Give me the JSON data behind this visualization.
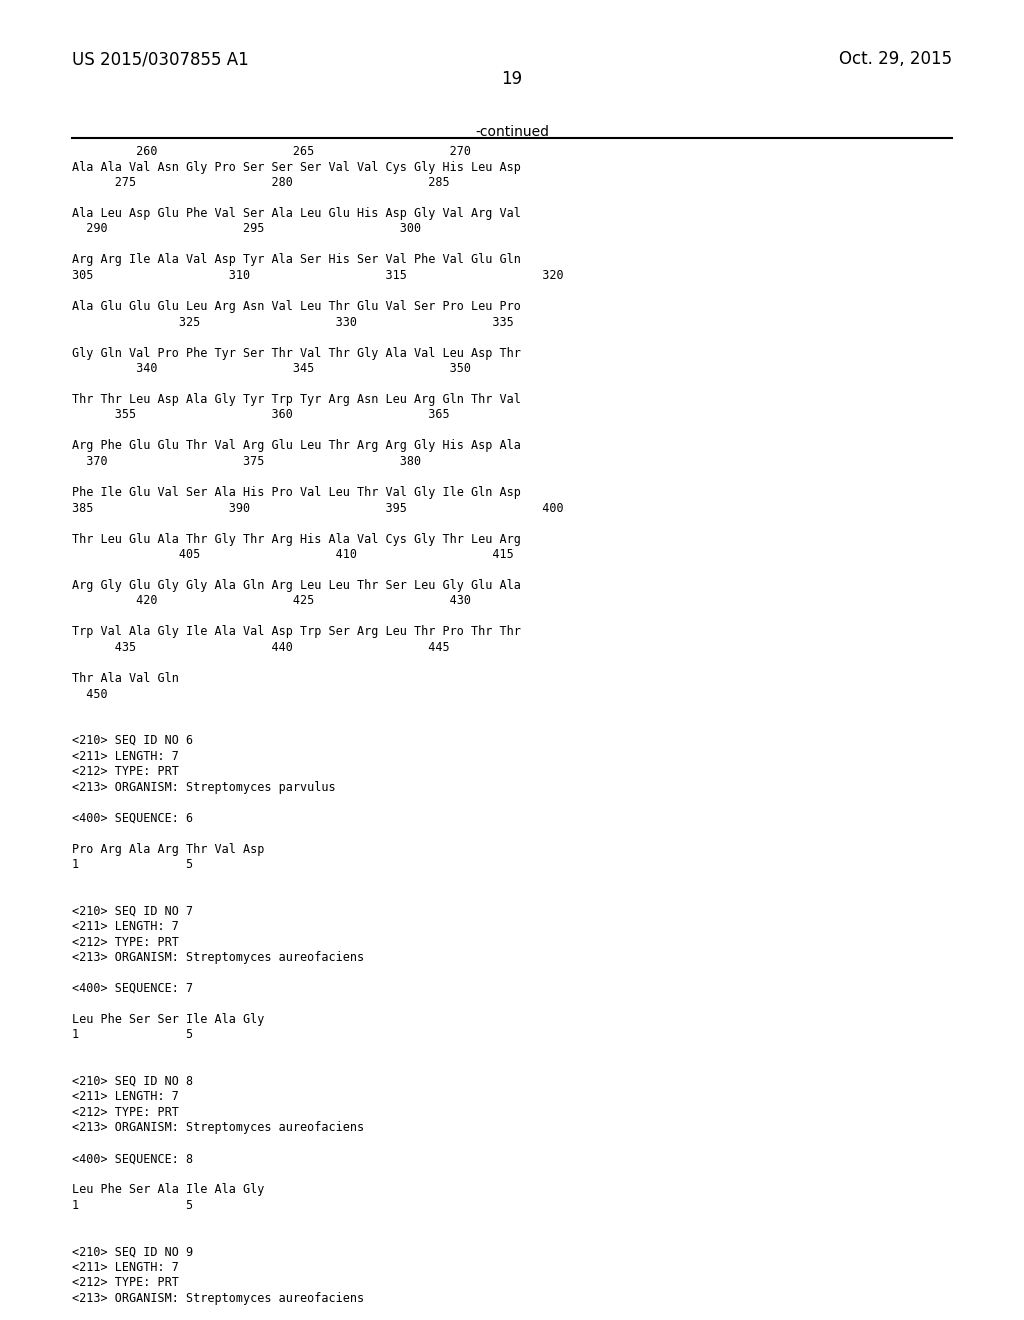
{
  "header_left": "US 2015/0307855 A1",
  "header_right": "Oct. 29, 2015",
  "page_number": "19",
  "continued_label": "-continued",
  "background_color": "#ffffff",
  "text_color": "#000000",
  "lines": [
    "         260                   265                   270    ",
    "Ala Ala Val Asn Gly Pro Ser Ser Ser Val Val Cys Gly His Leu Asp",
    "      275                   280                   285",
    "",
    "Ala Leu Asp Glu Phe Val Ser Ala Leu Glu His Asp Gly Val Arg Val",
    "  290                   295                   300",
    "",
    "Arg Arg Ile Ala Val Asp Tyr Ala Ser His Ser Val Phe Val Glu Gln",
    "305                   310                   315                   320",
    "",
    "Ala Glu Glu Glu Leu Arg Asn Val Leu Thr Glu Val Ser Pro Leu Pro",
    "               325                   330                   335",
    "",
    "Gly Gln Val Pro Phe Tyr Ser Thr Val Thr Gly Ala Val Leu Asp Thr",
    "         340                   345                   350",
    "",
    "Thr Thr Leu Asp Ala Gly Tyr Trp Tyr Arg Asn Leu Arg Gln Thr Val",
    "      355                   360                   365",
    "",
    "Arg Phe Glu Glu Thr Val Arg Glu Leu Thr Arg Arg Gly His Asp Ala",
    "  370                   375                   380",
    "",
    "Phe Ile Glu Val Ser Ala His Pro Val Leu Thr Val Gly Ile Gln Asp",
    "385                   390                   395                   400",
    "",
    "Thr Leu Glu Ala Thr Gly Thr Arg His Ala Val Cys Gly Thr Leu Arg",
    "               405                   410                   415",
    "",
    "Arg Gly Glu Gly Gly Ala Gln Arg Leu Leu Thr Ser Leu Gly Glu Ala",
    "         420                   425                   430",
    "",
    "Trp Val Ala Gly Ile Ala Val Asp Trp Ser Arg Leu Thr Pro Thr Thr",
    "      435                   440                   445",
    "",
    "Thr Ala Val Gln",
    "  450",
    "",
    "",
    "<210> SEQ ID NO 6",
    "<211> LENGTH: 7",
    "<212> TYPE: PRT",
    "<213> ORGANISM: Streptomyces parvulus",
    "",
    "<400> SEQUENCE: 6",
    "",
    "Pro Arg Ala Arg Thr Val Asp",
    "1               5",
    "",
    "",
    "<210> SEQ ID NO 7",
    "<211> LENGTH: 7",
    "<212> TYPE: PRT",
    "<213> ORGANISM: Streptomyces aureofaciens",
    "",
    "<400> SEQUENCE: 7",
    "",
    "Leu Phe Ser Ser Ile Ala Gly",
    "1               5",
    "",
    "",
    "<210> SEQ ID NO 8",
    "<211> LENGTH: 7",
    "<212> TYPE: PRT",
    "<213> ORGANISM: Streptomyces aureofaciens",
    "",
    "<400> SEQUENCE: 8",
    "",
    "Leu Phe Ser Ala Ile Ala Gly",
    "1               5",
    "",
    "",
    "<210> SEQ ID NO 9",
    "<211> LENGTH: 7",
    "<212> TYPE: PRT",
    "<213> ORGANISM: Streptomyces aureofaciens"
  ]
}
